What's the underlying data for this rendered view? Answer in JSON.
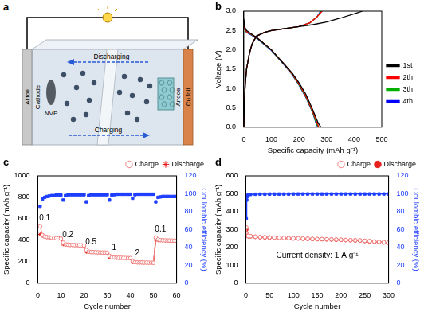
{
  "diagram": {
    "title": "a",
    "labels": {
      "left_foil": "Al foil",
      "right_foil": "Cu foil",
      "left_electrode": "Cathode",
      "right_electrode": "Anode",
      "cathode_material": "NVP",
      "top_arrow": "Discharging",
      "bottom_arrow": "Charging"
    }
  },
  "chart_data": [
    {
      "type": "line",
      "title": "b",
      "x_label": "Specific capacity (mAh g⁻¹)",
      "y_label": "Voltage (V)",
      "xlim": [
        0,
        500
      ],
      "xticks": [
        0,
        100,
        200,
        300,
        400,
        500
      ],
      "ylim": [
        0,
        3.0
      ],
      "yticks": [
        {
          "value": 0,
          "label": "0.0"
        },
        0.5,
        {
          "value": 1,
          "label": "1.0"
        },
        1.5,
        {
          "value": 2,
          "label": "2.0"
        },
        2.5,
        {
          "value": 3,
          "label": "3.0"
        }
      ],
      "legend": "right",
      "series": [
        {
          "name": "1st",
          "color": "#000000",
          "x": [
            0,
            3,
            10,
            20,
            30,
            50,
            75,
            100,
            125,
            150,
            175,
            200,
            225,
            250,
            270,
            280,
            280,
            0,
            2,
            5,
            10,
            20,
            30,
            45,
            75,
            100,
            150,
            200,
            250,
            300,
            350,
            400,
            430
          ],
          "values": [
            2.8,
            2.6,
            2.5,
            2.45,
            2.4,
            2.3,
            2.15,
            2.0,
            1.8,
            1.6,
            1.4,
            1.15,
            0.85,
            0.45,
            0.1,
            0.0,
            null,
            0.0,
            0.6,
            1.1,
            1.5,
            1.9,
            2.15,
            2.35,
            2.45,
            2.5,
            2.55,
            2.6,
            2.65,
            2.72,
            2.82,
            2.93,
            3.0
          ]
        },
        {
          "name": "2th",
          "color": "#ff0000",
          "x": [
            0,
            3,
            10,
            20,
            30,
            50,
            75,
            100,
            125,
            150,
            175,
            200,
            225,
            250,
            265,
            272,
            272,
            0,
            2,
            5,
            10,
            20,
            30,
            45,
            75,
            100,
            150,
            200,
            240,
            265,
            284
          ],
          "values": [
            2.75,
            2.55,
            2.47,
            2.43,
            2.39,
            2.3,
            2.15,
            2.0,
            1.8,
            1.6,
            1.38,
            1.12,
            0.8,
            0.4,
            0.12,
            0.0,
            null,
            0.0,
            0.6,
            1.1,
            1.5,
            1.9,
            2.15,
            2.35,
            2.45,
            2.5,
            2.55,
            2.6,
            2.7,
            2.85,
            3.0
          ]
        },
        {
          "name": "3th",
          "color": "#00b000",
          "x": [
            0,
            3,
            10,
            20,
            30,
            50,
            75,
            100,
            125,
            150,
            175,
            200,
            225,
            250,
            263,
            270,
            270,
            0,
            2,
            5,
            10,
            20,
            30,
            45,
            75,
            100,
            150,
            200,
            240,
            265,
            280
          ],
          "values": [
            2.74,
            2.54,
            2.46,
            2.42,
            2.38,
            2.29,
            2.14,
            1.99,
            1.79,
            1.59,
            1.37,
            1.1,
            0.78,
            0.38,
            0.1,
            0.0,
            null,
            0.0,
            0.6,
            1.1,
            1.5,
            1.9,
            2.15,
            2.35,
            2.45,
            2.5,
            2.55,
            2.6,
            2.7,
            2.85,
            3.0
          ]
        },
        {
          "name": "4th",
          "color": "#0000ff",
          "x": [
            0,
            3,
            10,
            20,
            30,
            50,
            75,
            100,
            125,
            150,
            175,
            200,
            225,
            250,
            262,
            268,
            268,
            0,
            2,
            5,
            10,
            20,
            30,
            45,
            75,
            100,
            150,
            200,
            240,
            265,
            278
          ],
          "values": [
            2.73,
            2.53,
            2.45,
            2.41,
            2.37,
            2.28,
            2.13,
            1.98,
            1.78,
            1.58,
            1.36,
            1.09,
            0.77,
            0.37,
            0.1,
            0.0,
            null,
            0.0,
            0.6,
            1.1,
            1.5,
            1.9,
            2.15,
            2.35,
            2.45,
            2.5,
            2.55,
            2.6,
            2.7,
            2.85,
            3.0
          ]
        }
      ]
    },
    {
      "type": "line",
      "title": "c",
      "x_label": "Cycle number",
      "y_label": "Specific capacity (mAh g⁻¹)",
      "y2_label": "Coulombic efficiency (%)",
      "xlim": [
        0,
        60
      ],
      "xticks": [
        0,
        10,
        20,
        30,
        40,
        50,
        60
      ],
      "ylim": [
        0,
        1000
      ],
      "yticks": [
        0,
        200,
        400,
        600,
        800,
        1000
      ],
      "y2lim": [
        0,
        120
      ],
      "y2ticks": [
        0,
        20,
        40,
        60,
        80,
        100,
        120
      ],
      "legend": "top-right",
      "annotations": [
        "0.1",
        "0.2",
        "0.5",
        "1",
        "2",
        "0.1"
      ],
      "x": [
        1,
        2,
        3,
        4,
        5,
        6,
        7,
        8,
        9,
        10,
        11,
        12,
        13,
        14,
        15,
        16,
        17,
        18,
        19,
        20,
        21,
        22,
        23,
        24,
        25,
        26,
        27,
        28,
        29,
        30,
        31,
        32,
        33,
        34,
        35,
        36,
        37,
        38,
        39,
        40,
        41,
        42,
        43,
        44,
        45,
        46,
        47,
        48,
        49,
        50,
        51,
        52,
        53,
        54,
        55,
        56,
        57,
        58,
        59,
        60
      ],
      "series": [
        {
          "name": "Charge",
          "color": "#f08080",
          "marker": "open_circle",
          "line_style": "solid",
          "values": [
            530,
            448,
            436,
            430,
            427,
            424,
            422,
            420,
            418,
            416,
            378,
            362,
            359,
            357,
            356,
            355,
            354,
            353,
            352,
            351,
            310,
            294,
            291,
            290,
            289,
            288,
            287,
            286,
            286,
            285,
            255,
            241,
            239,
            238,
            237,
            237,
            236,
            235,
            235,
            234,
            205,
            196,
            194,
            193,
            193,
            192,
            192,
            191,
            191,
            190,
            425,
            408,
            402,
            400,
            399,
            398,
            398,
            397,
            397,
            396
          ]
        },
        {
          "name": "Discharge",
          "color": "#e8201c",
          "marker": "star",
          "line_style": "solid",
          "values": [
            455,
            440,
            432,
            428,
            425,
            422,
            420,
            418,
            416,
            414,
            362,
            358,
            356,
            355,
            354,
            353,
            352,
            351,
            350,
            349,
            292,
            290,
            289,
            288,
            287,
            286,
            285,
            284,
            284,
            283,
            240,
            238,
            237,
            236,
            235,
            235,
            234,
            233,
            233,
            232,
            195,
            193,
            192,
            191,
            191,
            190,
            190,
            189,
            189,
            188,
            405,
            400,
            398,
            397,
            396,
            395,
            395,
            394,
            394,
            393
          ]
        },
        {
          "color": "#1f3fff",
          "marker": "square",
          "line_style": "none",
          "axis": "y2",
          "values": [
            86,
            94,
            96,
            97,
            97.5,
            98,
            98,
            98.5,
            98.5,
            98.5,
            93,
            98,
            98.5,
            99,
            99,
            99,
            99,
            99,
            99,
            99,
            91,
            98,
            99,
            99,
            99,
            99,
            99,
            99,
            99,
            99,
            93,
            98.5,
            99,
            99.5,
            99.5,
            99.5,
            99.5,
            99.5,
            99.5,
            99.5,
            95,
            99,
            99.5,
            99.5,
            99.5,
            99.5,
            99.5,
            99.5,
            99.5,
            99.5,
            91,
            96,
            96.5,
            97,
            97,
            97,
            97,
            97,
            97,
            97
          ]
        }
      ]
    },
    {
      "type": "line",
      "title": "d",
      "x_label": "Cycle number",
      "y_label": "Specific capacity (mAh g⁻¹)",
      "y2_label": "Coulombic efficiency (%)",
      "xlim": [
        0,
        300
      ],
      "xticks": [
        0,
        50,
        100,
        150,
        200,
        250,
        300
      ],
      "ylim": [
        0,
        600
      ],
      "yticks": [
        0,
        100,
        200,
        300,
        400,
        500,
        600
      ],
      "y2lim": [
        0,
        120
      ],
      "y2ticks": [
        0,
        20,
        40,
        60,
        80,
        100,
        120
      ],
      "legend": "top-right",
      "annotations": [
        "Current density: 1 A g⁻¹"
      ],
      "x": [
        1,
        2,
        3,
        4,
        5,
        10,
        20,
        30,
        40,
        50,
        60,
        70,
        80,
        90,
        100,
        110,
        120,
        130,
        140,
        150,
        160,
        170,
        180,
        190,
        200,
        210,
        220,
        230,
        240,
        250,
        260,
        270,
        280,
        290,
        300
      ],
      "series": [
        {
          "name": "Charge",
          "color": "#f08080",
          "marker": "open_circle",
          "line_style": "solid",
          "values": [
            312,
            278,
            270,
            266,
            264,
            263,
            260,
            258,
            257,
            256,
            255,
            254,
            253,
            252,
            251,
            251,
            250,
            249,
            248,
            247,
            247,
            246,
            245,
            244,
            243,
            242,
            241,
            240,
            239,
            237,
            235,
            233,
            231,
            229,
            227
          ]
        },
        {
          "name": "Discharge",
          "color": "#e8201c",
          "marker": "circle",
          "line_style": "solid",
          "values": [
            300,
            275,
            268,
            265,
            263,
            262,
            259,
            257,
            256,
            255,
            254,
            253,
            252,
            251,
            250,
            250,
            249,
            248,
            247,
            246,
            246,
            245,
            244,
            243,
            242,
            241,
            240,
            239,
            238,
            236,
            234,
            232,
            230,
            228,
            226
          ]
        },
        {
          "color": "#1f3fff",
          "marker": "square",
          "line_style": "solid",
          "axis": "y2",
          "values": [
            72,
            93,
            97,
            98,
            98.5,
            99.3,
            99.5,
            99.6,
            99.6,
            99.7,
            99.7,
            99.7,
            99.7,
            99.7,
            99.8,
            99.8,
            99.8,
            99.8,
            99.8,
            99.8,
            99.8,
            99.8,
            99.8,
            99.8,
            99.8,
            99.8,
            99.8,
            99.8,
            99.8,
            99.8,
            99.8,
            99.8,
            99.8,
            99.8,
            99.8
          ]
        }
      ]
    }
  ]
}
